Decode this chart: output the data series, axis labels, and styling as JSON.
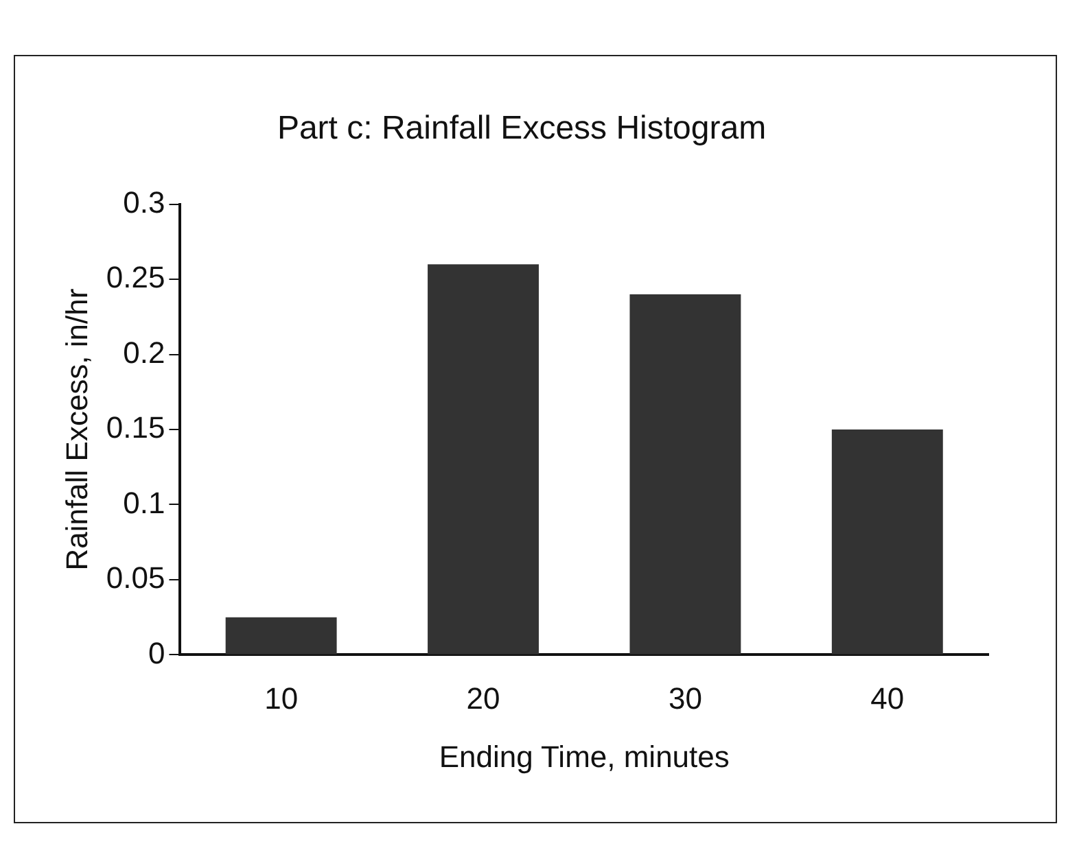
{
  "chart_data": {
    "type": "bar",
    "title": "Part c: Rainfall Excess Histogram",
    "xlabel": "Ending Time, minutes",
    "ylabel": "Rainfall Excess, in/hr",
    "categories": [
      "10",
      "20",
      "30",
      "40"
    ],
    "values": [
      0.025,
      0.26,
      0.24,
      0.15
    ],
    "color": "#333333",
    "ylim": [
      0,
      0.3
    ],
    "yticks": [
      0,
      0.05,
      0.1,
      0.15,
      0.2,
      0.25,
      0.3
    ],
    "grid": false,
    "legend": false
  }
}
